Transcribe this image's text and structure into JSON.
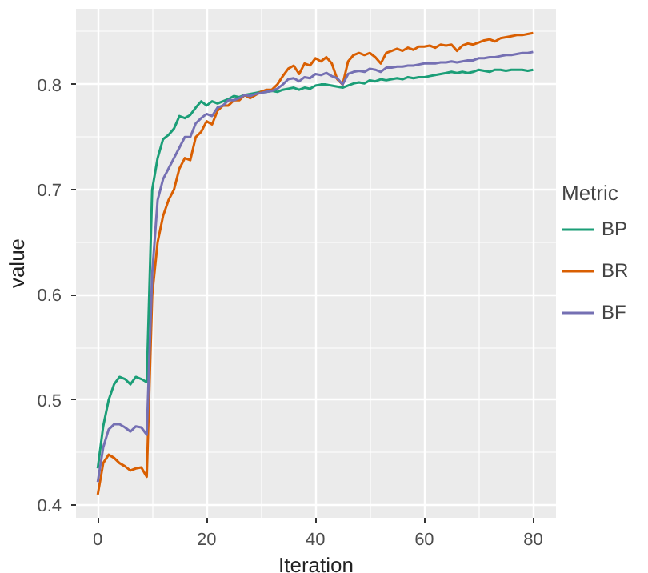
{
  "chart_data": {
    "type": "line",
    "xlabel": "Iteration",
    "ylabel": "value",
    "legend_title": "Metric",
    "legend": "right",
    "grid": true,
    "x": [
      0,
      1,
      2,
      3,
      4,
      5,
      6,
      7,
      8,
      9,
      10,
      11,
      12,
      13,
      14,
      15,
      16,
      17,
      18,
      19,
      20,
      21,
      22,
      23,
      24,
      25,
      26,
      27,
      28,
      29,
      30,
      31,
      32,
      33,
      34,
      35,
      36,
      37,
      38,
      39,
      40,
      41,
      42,
      43,
      44,
      45,
      46,
      47,
      48,
      49,
      50,
      51,
      52,
      53,
      54,
      55,
      56,
      57,
      58,
      59,
      60,
      61,
      62,
      63,
      64,
      65,
      66,
      67,
      68,
      69,
      70,
      71,
      72,
      73,
      74,
      75,
      76,
      77,
      78,
      79,
      80
    ],
    "xlim": [
      -4,
      84.2
    ],
    "ylim": [
      0.388,
      0.872
    ],
    "xticks": [
      0,
      20,
      40,
      60,
      80
    ],
    "yticks": [
      0.4,
      0.5,
      0.6,
      0.7,
      0.8
    ],
    "series": [
      {
        "name": "BP",
        "color": "#1b9e77",
        "values": [
          0.435,
          0.475,
          0.5,
          0.515,
          0.522,
          0.52,
          0.515,
          0.522,
          0.52,
          0.517,
          0.7,
          0.73,
          0.748,
          0.752,
          0.758,
          0.77,
          0.768,
          0.771,
          0.778,
          0.784,
          0.78,
          0.784,
          0.782,
          0.784,
          0.786,
          0.789,
          0.788,
          0.79,
          0.791,
          0.792,
          0.793,
          0.793,
          0.794,
          0.793,
          0.795,
          0.796,
          0.797,
          0.795,
          0.797,
          0.796,
          0.799,
          0.8,
          0.8,
          0.799,
          0.798,
          0.797,
          0.799,
          0.801,
          0.802,
          0.801,
          0.804,
          0.803,
          0.805,
          0.804,
          0.805,
          0.806,
          0.805,
          0.807,
          0.806,
          0.807,
          0.807,
          0.808,
          0.809,
          0.81,
          0.811,
          0.812,
          0.811,
          0.812,
          0.811,
          0.812,
          0.814,
          0.813,
          0.812,
          0.814,
          0.814,
          0.813,
          0.814,
          0.814,
          0.814,
          0.813,
          0.814
        ]
      },
      {
        "name": "BR",
        "color": "#d95f02",
        "values": [
          0.41,
          0.44,
          0.448,
          0.445,
          0.44,
          0.437,
          0.433,
          0.435,
          0.436,
          0.427,
          0.6,
          0.65,
          0.675,
          0.69,
          0.7,
          0.72,
          0.73,
          0.728,
          0.75,
          0.755,
          0.765,
          0.762,
          0.775,
          0.78,
          0.78,
          0.785,
          0.785,
          0.79,
          0.787,
          0.79,
          0.793,
          0.795,
          0.795,
          0.8,
          0.808,
          0.815,
          0.818,
          0.81,
          0.82,
          0.818,
          0.825,
          0.822,
          0.826,
          0.82,
          0.805,
          0.8,
          0.822,
          0.828,
          0.83,
          0.828,
          0.83,
          0.826,
          0.82,
          0.83,
          0.832,
          0.834,
          0.832,
          0.835,
          0.833,
          0.836,
          0.836,
          0.837,
          0.835,
          0.838,
          0.837,
          0.838,
          0.832,
          0.837,
          0.839,
          0.838,
          0.84,
          0.842,
          0.843,
          0.841,
          0.844,
          0.845,
          0.846,
          0.847,
          0.847,
          0.848,
          0.849
        ]
      },
      {
        "name": "BF",
        "color": "#7570b3",
        "values": [
          0.422,
          0.455,
          0.472,
          0.477,
          0.477,
          0.474,
          0.47,
          0.475,
          0.474,
          0.467,
          0.62,
          0.69,
          0.71,
          0.72,
          0.73,
          0.74,
          0.75,
          0.75,
          0.763,
          0.768,
          0.772,
          0.77,
          0.778,
          0.78,
          0.785,
          0.785,
          0.787,
          0.79,
          0.789,
          0.791,
          0.792,
          0.793,
          0.794,
          0.796,
          0.8,
          0.805,
          0.806,
          0.803,
          0.807,
          0.806,
          0.81,
          0.809,
          0.811,
          0.808,
          0.806,
          0.8,
          0.81,
          0.812,
          0.813,
          0.812,
          0.815,
          0.814,
          0.812,
          0.816,
          0.816,
          0.817,
          0.817,
          0.818,
          0.818,
          0.819,
          0.82,
          0.82,
          0.82,
          0.821,
          0.821,
          0.822,
          0.821,
          0.822,
          0.823,
          0.823,
          0.825,
          0.825,
          0.826,
          0.826,
          0.827,
          0.828,
          0.828,
          0.829,
          0.83,
          0.83,
          0.831
        ]
      }
    ]
  }
}
